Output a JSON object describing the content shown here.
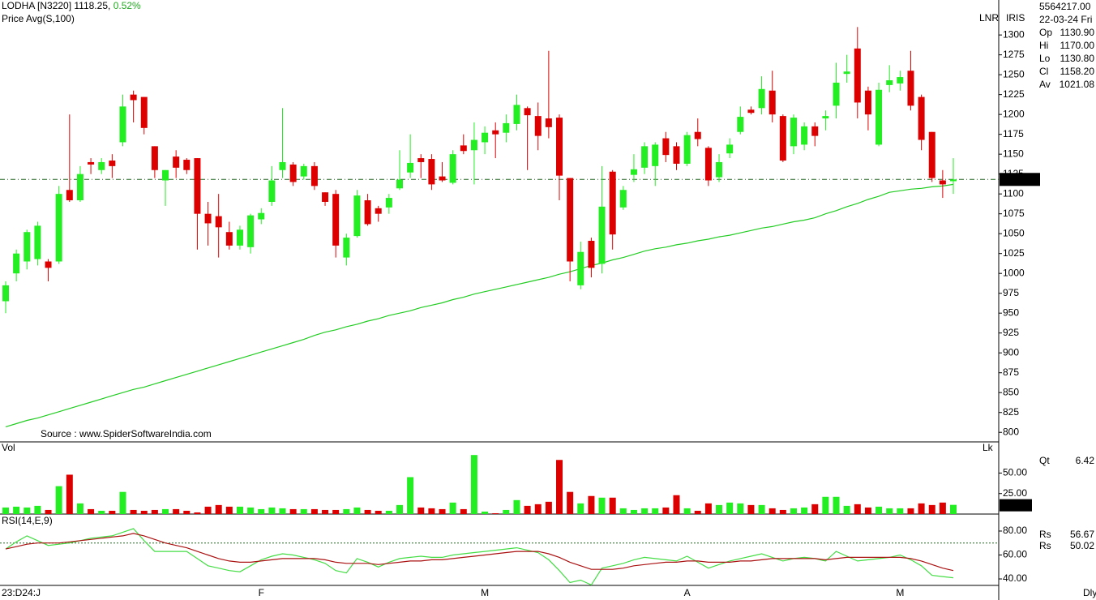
{
  "chart_data": {
    "type": "candlestick",
    "title": "LODHA [N3220]",
    "last_price": 1118.25,
    "change_pct": {
      "value": 0.52,
      "label": "0.52%"
    },
    "source": "Source : www.SpiderSoftwareIndia.com",
    "axis_flags": [
      "LNR",
      "IRIS"
    ],
    "up_color": "#22ee22",
    "down_color": "#dd0000",
    "categories": [
      "23:D24:J",
      null,
      null,
      null,
      null,
      null,
      null,
      null,
      null,
      null,
      null,
      null,
      null,
      null,
      null,
      null,
      null,
      null,
      null,
      null,
      null,
      null,
      null,
      null,
      "F",
      null,
      null,
      null,
      null,
      null,
      null,
      null,
      null,
      null,
      null,
      null,
      null,
      null,
      null,
      null,
      null,
      null,
      null,
      null,
      null,
      "M",
      null,
      null,
      null,
      null,
      null,
      null,
      null,
      null,
      null,
      null,
      null,
      null,
      null,
      null,
      null,
      null,
      null,
      null,
      "A",
      null,
      null,
      null,
      null,
      null,
      null,
      null,
      null,
      null,
      null,
      null,
      null,
      null,
      null,
      null,
      null,
      null,
      null,
      null,
      "M",
      null,
      null,
      null,
      null,
      null
    ],
    "period": "Dly",
    "open": [
      965,
      1000,
      1015,
      1018,
      1015,
      1015,
      1105,
      1092,
      1140,
      1130,
      1142,
      1165,
      1225,
      1222,
      1160,
      1117,
      1147,
      1143,
      1145,
      1075,
      1072,
      1052,
      1035,
      1033,
      1068,
      1090,
      1130,
      1137,
      1122,
      1135,
      1102,
      1100,
      1020,
      1047,
      1092,
      1082,
      1083,
      1107,
      1127,
      1145,
      1144,
      1122,
      1114,
      1161,
      1155,
      1165,
      1180,
      1177,
      1188,
      1208,
      1198,
      1195,
      1196,
      1120,
      985,
      1041,
      1012,
      1128,
      1083,
      1124,
      1133,
      1135,
      1170,
      1160,
      1138,
      1178,
      1158,
      1121,
      1151,
      1178,
      1206,
      1208,
      1230,
      1198,
      1160,
      1162,
      1185,
      1195,
      1211,
      1251,
      1283,
      1230,
      1162,
      1237,
      1239,
      1255,
      1222,
      1178,
      1117,
      1116
    ],
    "high": [
      990,
      1030,
      1055,
      1065,
      1018,
      1110,
      1200,
      1135,
      1145,
      1145,
      1150,
      1225,
      1230,
      1222,
      1160,
      1130,
      1155,
      1145,
      1145,
      1090,
      1100,
      1065,
      1060,
      1075,
      1082,
      1135,
      1208,
      1140,
      1138,
      1140,
      1102,
      1105,
      1050,
      1105,
      1100,
      1085,
      1100,
      1155,
      1175,
      1150,
      1150,
      1140,
      1155,
      1175,
      1190,
      1185,
      1190,
      1200,
      1225,
      1210,
      1215,
      1280,
      1200,
      1120,
      1040,
      1045,
      1135,
      1130,
      1110,
      1150,
      1165,
      1165,
      1178,
      1165,
      1178,
      1195,
      1160,
      1150,
      1170,
      1210,
      1210,
      1248,
      1255,
      1200,
      1200,
      1190,
      1190,
      1205,
      1265,
      1275,
      1310,
      1235,
      1240,
      1262,
      1255,
      1280,
      1225,
      1178,
      1130,
      1145
    ],
    "low": [
      950,
      990,
      1005,
      1010,
      990,
      1012,
      1090,
      1090,
      1125,
      1125,
      1120,
      1160,
      1190,
      1175,
      1120,
      1085,
      1120,
      1125,
      1030,
      1035,
      1020,
      1030,
      1030,
      1025,
      1062,
      1085,
      1120,
      1110,
      1118,
      1105,
      1085,
      1020,
      1010,
      1045,
      1060,
      1065,
      1075,
      1105,
      1120,
      1120,
      1105,
      1115,
      1112,
      1150,
      1112,
      1150,
      1145,
      1165,
      1180,
      1130,
      1155,
      1170,
      1092,
      990,
      980,
      995,
      1000,
      1030,
      1080,
      1115,
      1125,
      1110,
      1140,
      1130,
      1135,
      1160,
      1110,
      1115,
      1145,
      1175,
      1200,
      1200,
      1190,
      1140,
      1150,
      1155,
      1160,
      1180,
      1195,
      1240,
      1195,
      1180,
      1160,
      1228,
      1230,
      1205,
      1155,
      1115,
      1095,
      1100
    ],
    "close": [
      985,
      1025,
      1052,
      1060,
      1007,
      1100,
      1092,
      1125,
      1137,
      1140,
      1135,
      1210,
      1218,
      1183,
      1130,
      1130,
      1133,
      1130,
      1075,
      1063,
      1058,
      1035,
      1055,
      1073,
      1076,
      1117,
      1140,
      1115,
      1135,
      1110,
      1090,
      1035,
      1045,
      1098,
      1062,
      1075,
      1095,
      1118,
      1139,
      1140,
      1112,
      1117,
      1150,
      1154,
      1168,
      1177,
      1175,
      1189,
      1212,
      1199,
      1173,
      1184,
      1123,
      1015,
      1027,
      1007,
      1084,
      1049,
      1105,
      1131,
      1160,
      1162,
      1149,
      1138,
      1174,
      1169,
      1117,
      1140,
      1162,
      1197,
      1202,
      1232,
      1200,
      1142,
      1196,
      1185,
      1173,
      1198,
      1240,
      1254,
      1215,
      1200,
      1231,
      1243,
      1247,
      1211,
      1168,
      1120,
      1112,
      1118.25
    ],
    "series": [
      {
        "name": "Price Avg(S,100)",
        "color": "#22cc22",
        "values": [
          807,
          811,
          815,
          818,
          822,
          826,
          830,
          834,
          838,
          842,
          846,
          850,
          854,
          857,
          861,
          865,
          869,
          873,
          877,
          881,
          885,
          889,
          893,
          897,
          901,
          905,
          909,
          913,
          917,
          922,
          926,
          929,
          933,
          936,
          940,
          943,
          947,
          950,
          953,
          957,
          960,
          963,
          967,
          970,
          974,
          977,
          980,
          983,
          986,
          989,
          992,
          995,
          999,
          1002,
          1006,
          1010,
          1013,
          1017,
          1020,
          1024,
          1028,
          1031,
          1033,
          1036,
          1038,
          1041,
          1043,
          1046,
          1048,
          1051,
          1054,
          1057,
          1059,
          1062,
          1065,
          1067,
          1070,
          1075,
          1079,
          1084,
          1088,
          1093,
          1097,
          1102,
          1104,
          1106,
          1107,
          1109,
          1110,
          1112
        ]
      }
    ],
    "ylim": [
      788,
      1344
    ],
    "yticks": [
      800,
      825,
      850,
      875,
      900,
      925,
      950,
      975,
      1000,
      1025,
      1050,
      1075,
      1100,
      1125,
      1150,
      1175,
      1200,
      1225,
      1250,
      1275,
      1300
    ],
    "info": {
      "total": {
        "value": 5564217,
        "label": "5564217.00"
      },
      "date": "22-03-24 Fri",
      "fields": [
        {
          "name": "Op",
          "value": 1130.9,
          "label": "1130.90",
          "color": "#22cc22"
        },
        {
          "name": "Hi",
          "value": 1170,
          "label": "1170.00",
          "color": "#dd0000"
        },
        {
          "name": "Lo",
          "value": 1130.8,
          "label": "1130.80",
          "color": "#cccccc"
        },
        {
          "name": "Cl",
          "value": 1158.2,
          "label": "1158.20",
          "color": "#cc00cc"
        },
        {
          "name": "Av",
          "value": 1021.08,
          "label": "1021.08",
          "color": "#22cc22"
        }
      ]
    },
    "volume": {
      "title": "Vol",
      "unit": "Lk",
      "readout_name": "Qt",
      "readout": 6.42,
      "values": [
        8,
        9,
        8,
        10,
        5,
        34,
        48,
        13,
        6,
        4,
        4,
        27,
        5,
        4,
        5,
        6,
        6,
        4,
        2,
        9,
        11,
        9,
        9,
        8,
        6,
        8,
        7,
        6,
        6,
        6,
        5,
        5,
        6,
        8,
        5,
        4,
        4,
        11,
        45,
        8,
        7,
        6,
        14,
        6,
        72,
        3,
        1,
        5,
        17,
        10,
        12,
        15,
        66,
        27,
        13,
        22,
        20,
        20,
        7,
        5,
        7,
        7,
        8,
        23,
        7,
        4,
        13,
        11,
        14,
        13,
        11,
        11,
        7,
        5,
        7,
        8,
        12,
        21,
        21,
        10,
        12,
        8,
        9,
        7,
        7,
        7,
        13,
        11,
        14,
        11.22
      ],
      "ylim": [
        0,
        88
      ],
      "yticks": [
        {
          "value": 25,
          "label": "25.00"
        },
        {
          "value": 50,
          "label": "50.00"
        }
      ]
    },
    "rsi": {
      "title": "RSI(14,E,9)",
      "ylim": [
        34.6,
        94.2
      ],
      "level": 70,
      "yticks": [
        {
          "value": 40,
          "label": "40.00"
        },
        {
          "value": 60,
          "label": "60.00"
        },
        {
          "value": 80,
          "label": "80.00"
        }
      ],
      "series": [
        {
          "name": "Rs",
          "color": "#44dd44",
          "readout": 56.67,
          "values": [
            65,
            71,
            76,
            72,
            68,
            69,
            70,
            72,
            74,
            75,
            76,
            79,
            82,
            72,
            63,
            63,
            63,
            63,
            57,
            51,
            49,
            47,
            46,
            51,
            56,
            59,
            61,
            60,
            58,
            56,
            53,
            47,
            45,
            57,
            54,
            50,
            54,
            57,
            58,
            59,
            58,
            58,
            60,
            61,
            62,
            63,
            64,
            65,
            66,
            64,
            62,
            56,
            47,
            37,
            39,
            35,
            49,
            51,
            53,
            56,
            58,
            57,
            56,
            55,
            59,
            54,
            49,
            52,
            55,
            57,
            59,
            61,
            58,
            55,
            57,
            58,
            57,
            55,
            63,
            59,
            55,
            56,
            57,
            58,
            60,
            56,
            51,
            43,
            42,
            41
          ]
        },
        {
          "name": "Rs",
          "color": "#aa1111",
          "readout": 50.02,
          "values": [
            65,
            67,
            69,
            70,
            70,
            70,
            71,
            72,
            73,
            74,
            75,
            76,
            78,
            76,
            73,
            70,
            68,
            66,
            63,
            60,
            57,
            55,
            54,
            54,
            55,
            56,
            57,
            57,
            57,
            57,
            56,
            54,
            53,
            53,
            53,
            52,
            53,
            54,
            55,
            55,
            56,
            56,
            57,
            58,
            59,
            60,
            61,
            62,
            63,
            63,
            63,
            61,
            58,
            54,
            51,
            48,
            48,
            48,
            49,
            51,
            52,
            53,
            54,
            54,
            55,
            55,
            54,
            54,
            54,
            55,
            55,
            56,
            57,
            57,
            57,
            57,
            57,
            56,
            57,
            58,
            58,
            58,
            58,
            58,
            58,
            57,
            55,
            52,
            49,
            47
          ]
        }
      ]
    }
  }
}
